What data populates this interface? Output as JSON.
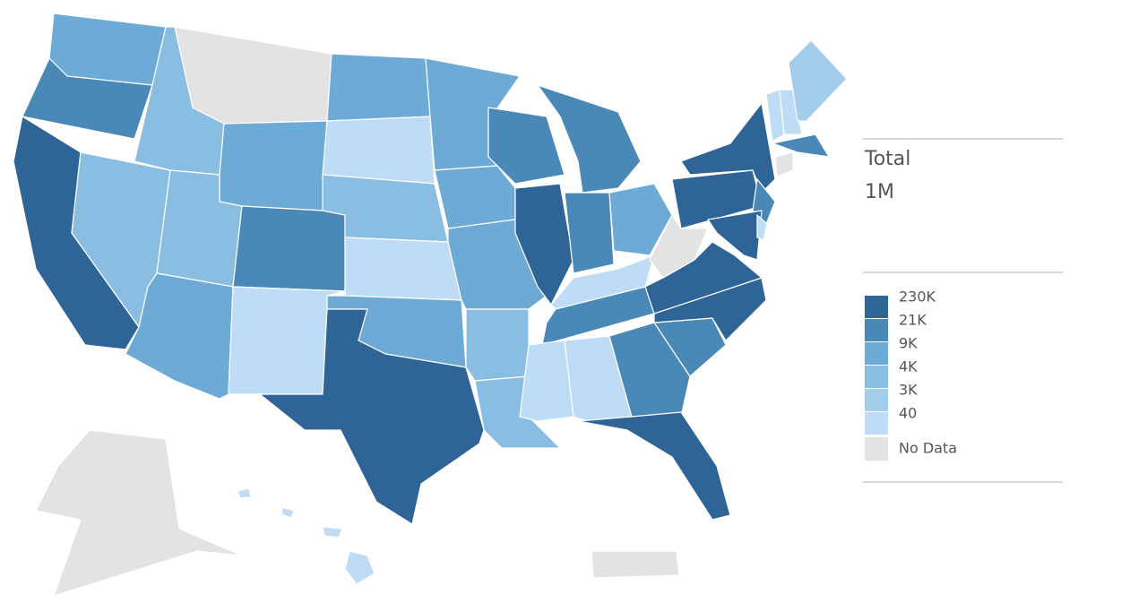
{
  "legend": {
    "title": "Total",
    "total": "1M",
    "items": [
      {
        "label": "230K",
        "color": "#2f6497"
      },
      {
        "label": "21K",
        "color": "#4a88b8"
      },
      {
        "label": "9K",
        "color": "#6eaad6"
      },
      {
        "label": "4K",
        "color": "#8abde2"
      },
      {
        "label": "3K",
        "color": "#a3cdeb"
      },
      {
        "label": "40",
        "color": "#bedcf5"
      }
    ],
    "no_data": {
      "label": "No Data",
      "color": "#e3e3e3"
    }
  }
}
